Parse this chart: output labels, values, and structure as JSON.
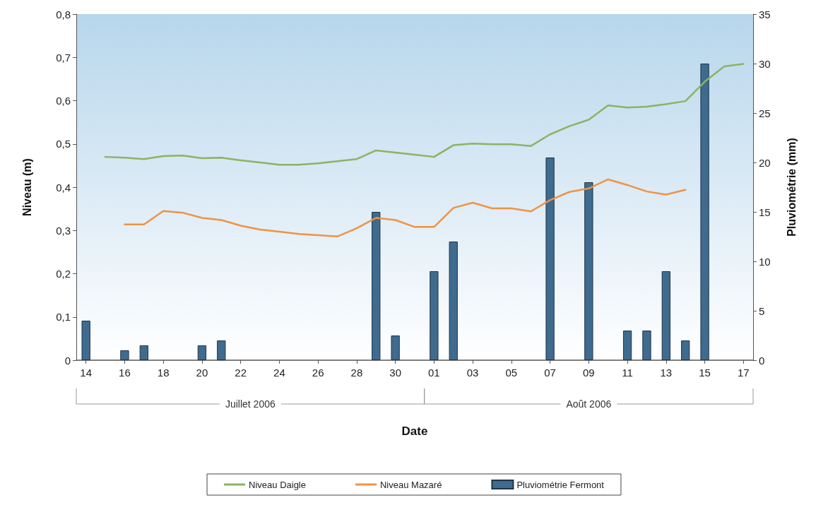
{
  "chart_data": {
    "type": "line",
    "xlabel": "Date",
    "ylabel": "Niveau (m)",
    "y2label": "Pluviométrie (mm)",
    "categories": [
      "14",
      null,
      "16",
      null,
      "18",
      null,
      "20",
      null,
      "22",
      null,
      "24",
      null,
      "26",
      null,
      "28",
      null,
      "30",
      null,
      "01",
      null,
      "03",
      null,
      "05",
      null,
      "07",
      null,
      "09",
      null,
      "11",
      null,
      "13",
      null,
      "15",
      null,
      "17"
    ],
    "series": [
      {
        "name": "Niveau Daigle",
        "color": "#8cb363",
        "values": [
          null,
          0.47,
          0.468,
          0.465,
          0.472,
          0.473,
          0.467,
          0.468,
          0.462,
          0.457,
          0.452,
          0.452,
          0.455,
          0.46,
          0.465,
          0.485,
          0.48,
          0.475,
          0.47,
          0.497,
          0.501,
          0.499,
          0.499,
          0.495,
          0.522,
          0.541,
          0.556,
          0.589,
          0.584,
          0.586,
          0.592,
          0.599,
          0.644,
          0.679,
          0.685
        ]
      },
      {
        "name": "Niveau Mazaré",
        "color": "#ef9344",
        "values": [
          null,
          null,
          0.314,
          0.314,
          0.345,
          0.341,
          0.329,
          0.324,
          0.311,
          0.302,
          0.297,
          0.292,
          0.289,
          0.286,
          0.305,
          0.329,
          0.324,
          0.308,
          0.308,
          0.352,
          0.364,
          0.351,
          0.351,
          0.344,
          0.37,
          0.389,
          0.397,
          0.418,
          0.405,
          0.39,
          0.383,
          0.394,
          null,
          null,
          null
        ]
      },
      {
        "name": "Pluviométrie Fermont",
        "type": "bar",
        "axis": "y2",
        "color": "#3f6b8f",
        "values": [
          4,
          null,
          1,
          1.5,
          null,
          null,
          1.5,
          2,
          null,
          null,
          null,
          null,
          null,
          null,
          null,
          15,
          2.5,
          null,
          9,
          12,
          null,
          null,
          null,
          null,
          20.5,
          null,
          18,
          null,
          3,
          3,
          9,
          2,
          30,
          null,
          null
        ]
      }
    ],
    "ylim": [
      0,
      0.8
    ],
    "yticks": [
      {
        "value": 0,
        "label": "0"
      },
      {
        "value": 0.1,
        "label": "0,1"
      },
      {
        "value": 0.2,
        "label": "0,2"
      },
      {
        "value": 0.3,
        "label": "0,3"
      },
      {
        "value": 0.4,
        "label": "0,4"
      },
      {
        "value": 0.5,
        "label": "0,5"
      },
      {
        "value": 0.6,
        "label": "0,6"
      },
      {
        "value": 0.7,
        "label": "0,7"
      },
      {
        "value": 0.8,
        "label": "0,8"
      }
    ],
    "y2lim": [
      0,
      35
    ],
    "y2ticks": [
      0,
      5,
      10,
      15,
      20,
      25,
      30,
      35
    ],
    "annotations": [
      "Juillet 2006",
      "Août 2006"
    ],
    "legend": "bottom"
  }
}
